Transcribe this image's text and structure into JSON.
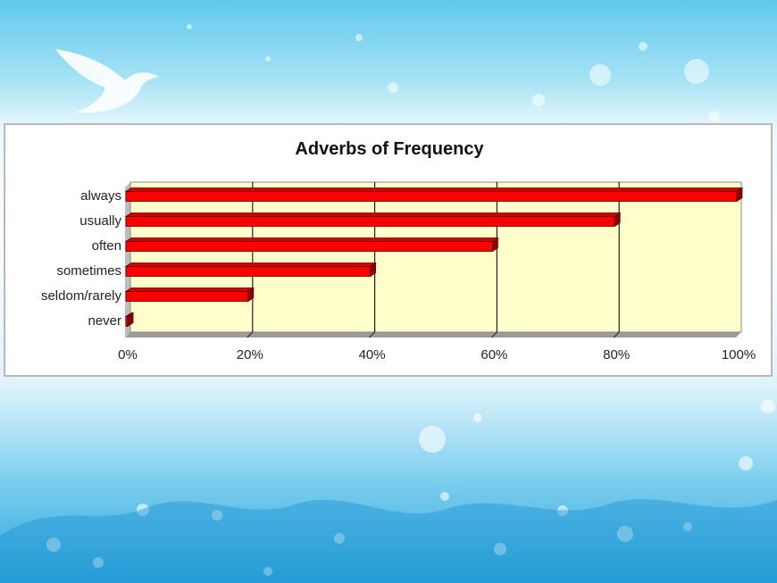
{
  "chart_data": {
    "type": "bar",
    "orientation": "horizontal",
    "title": "Adverbs of Frequency",
    "categories": [
      "never",
      "seldom/rarely",
      "sometimes",
      "often",
      "usually",
      "always"
    ],
    "values": [
      0,
      20,
      40,
      60,
      80,
      100
    ],
    "value_unit": "%",
    "xlim": [
      0,
      100
    ],
    "xticks": [
      "0%",
      "20%",
      "40%",
      "60%",
      "80%",
      "100%"
    ],
    "xlabel": "",
    "ylabel": "",
    "grid": true,
    "legend": "none",
    "colors": {
      "bar": "#ff0000",
      "bar_dark": "#8a0000",
      "plot_background": "#ffffcc",
      "grid": "#222222"
    }
  }
}
